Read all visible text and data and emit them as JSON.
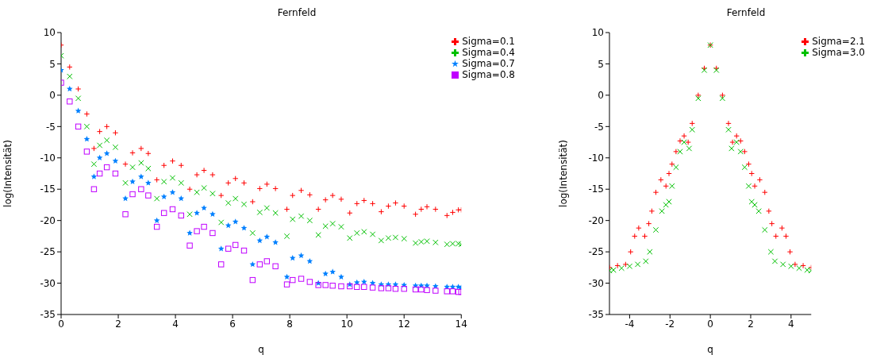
{
  "chart_data": [
    {
      "type": "scatter",
      "title": "Fernfeld",
      "xlabel": "q",
      "ylabel": "log(Intensität)",
      "xlim": [
        0,
        14
      ],
      "xticks": [
        0,
        2,
        4,
        6,
        8,
        10,
        12,
        14
      ],
      "ylim": [
        -35,
        10
      ],
      "yticks": [
        -35,
        -30,
        -25,
        -20,
        -15,
        -10,
        -5,
        0,
        5,
        10
      ],
      "grid": false,
      "legend": "top right",
      "x": [
        0,
        0.3,
        0.6,
        0.9,
        1.15,
        1.35,
        1.6,
        1.9,
        2.25,
        2.5,
        2.8,
        3.05,
        3.35,
        3.6,
        3.9,
        4.2,
        4.5,
        4.75,
        5.0,
        5.3,
        5.6,
        5.85,
        6.1,
        6.4,
        6.7,
        6.95,
        7.2,
        7.5,
        7.9,
        8.1,
        8.4,
        8.7,
        9.0,
        9.25,
        9.5,
        9.8,
        10.1,
        10.35,
        10.6,
        10.9,
        11.2,
        11.45,
        11.7,
        12.0,
        12.4,
        12.6,
        12.8,
        13.1,
        13.5,
        13.7,
        13.9,
        14.0
      ],
      "series": [
        {
          "name": "Sigma=0.1",
          "color": "#ff0000",
          "marker": "plus",
          "values": [
            8,
            4.5,
            1,
            -3,
            -8.5,
            -5.8,
            -5,
            -6,
            -11,
            -9.2,
            -8.5,
            -9.3,
            -13.5,
            -11.2,
            -10.5,
            -11.2,
            -15,
            -12.7,
            -12,
            -12.7,
            -16,
            -14,
            -13.3,
            -14,
            -17,
            -14.9,
            -14.2,
            -14.9,
            -18.2,
            -16,
            -15.2,
            -15.9,
            -18.2,
            -16.7,
            -16,
            -16.6,
            -18.8,
            -17.3,
            -16.8,
            -17.3,
            -18.6,
            -17.7,
            -17.2,
            -17.7,
            -19,
            -18.2,
            -17.8,
            -18.2,
            -19.2,
            -18.7,
            -18.3,
            -18.3
          ]
        },
        {
          "name": "Sigma=0.4",
          "color": "#00c000",
          "marker": "cross",
          "values": [
            6.3,
            3,
            -0.5,
            -5,
            -11,
            -8,
            -7.2,
            -8.3,
            -14,
            -11.5,
            -10.8,
            -11.7,
            -16.5,
            -13.8,
            -13.2,
            -14,
            -19,
            -15.5,
            -14.8,
            -15.7,
            -20.3,
            -17.2,
            -16.5,
            -17.4,
            -22,
            -18.7,
            -18,
            -18.8,
            -22.5,
            -19.8,
            -19.3,
            -20,
            -22.3,
            -20.9,
            -20.5,
            -21,
            -22.8,
            -22,
            -21.8,
            -22.2,
            -23.2,
            -22.8,
            -22.7,
            -22.9,
            -23.6,
            -23.4,
            -23.3,
            -23.5,
            -23.8,
            -23.7,
            -23.7,
            -23.8
          ]
        },
        {
          "name": "Sigma=0.7",
          "color": "#0080ff",
          "marker": "star",
          "values": [
            4,
            1,
            -2.5,
            -7,
            -13,
            -10,
            -9.3,
            -10.5,
            -16.5,
            -13.8,
            -13,
            -14,
            -20,
            -16.2,
            -15.5,
            -16.5,
            -22,
            -18.8,
            -18,
            -19,
            -24.5,
            -20.8,
            -20.2,
            -21.2,
            -27,
            -23.2,
            -22.6,
            -23.5,
            -29,
            -26,
            -25.6,
            -26.5,
            -30,
            -28.5,
            -28.2,
            -29,
            -30.2,
            -29.9,
            -29.8,
            -30,
            -30.2,
            -30.2,
            -30.2,
            -30.3,
            -30.4,
            -30.4,
            -30.4,
            -30.5,
            -30.6,
            -30.6,
            -30.6,
            -30.7
          ]
        },
        {
          "name": "Sigma=0.8",
          "color": "#c000ff",
          "marker": "square",
          "values": [
            2,
            -1,
            -5,
            -9,
            -15,
            -12.5,
            -11.5,
            -12.5,
            -19,
            -15.8,
            -15,
            -16,
            -21,
            -18.8,
            -18.2,
            -19.2,
            -24,
            -21.7,
            -21,
            -22,
            -27,
            -24.5,
            -23.9,
            -24.8,
            -29.5,
            -27,
            -26.5,
            -27.3,
            -30.2,
            -29.5,
            -29.3,
            -29.8,
            -30.3,
            -30.3,
            -30.4,
            -30.5,
            -30.5,
            -30.6,
            -30.6,
            -30.7,
            -30.8,
            -30.8,
            -30.9,
            -30.9,
            -31,
            -31,
            -31.1,
            -31.2,
            -31.3,
            -31.3,
            -31.4,
            -31.4
          ]
        }
      ]
    },
    {
      "type": "scatter",
      "title": "Fernfeld",
      "xlabel": "q",
      "ylabel": "log(Intensität)",
      "xlim": [
        -5,
        5
      ],
      "xticks": [
        -4,
        -2,
        0,
        2,
        4
      ],
      "ylim": [
        -35,
        10
      ],
      "yticks": [
        -35,
        -30,
        -25,
        -20,
        -15,
        -10,
        -5,
        0,
        5,
        10
      ],
      "grid": false,
      "legend": "top right",
      "series": [
        {
          "name": "Sigma=2.1",
          "color": "#ff0000",
          "marker": "plus",
          "x": [
            -5,
            -4.6,
            -4.2,
            -3.95,
            -3.75,
            -3.55,
            -3.25,
            -3.05,
            -2.9,
            -2.7,
            -2.45,
            -2.2,
            -2.05,
            -1.9,
            -1.7,
            -1.5,
            -1.3,
            -1.1,
            -0.9,
            -0.6,
            -0.3,
            0,
            0.3,
            0.6,
            0.9,
            1.1,
            1.3,
            1.5,
            1.7,
            1.9,
            2.05,
            2.2,
            2.45,
            2.7,
            2.9,
            3.05,
            3.25,
            3.55,
            3.75,
            3.95,
            4.2,
            4.6,
            5
          ],
          "values": [
            -27.5,
            -27.2,
            -27,
            -25,
            -22.5,
            -21.2,
            -22.5,
            -20.5,
            -18.5,
            -15.5,
            -13.5,
            -14.5,
            -12.5,
            -11,
            -9,
            -7.3,
            -6.5,
            -7.5,
            -4.5,
            0,
            4.3,
            8,
            4.3,
            0,
            -4.5,
            -7.5,
            -6.5,
            -7.3,
            -9,
            -11,
            -12.5,
            -14.5,
            -13.5,
            -15.5,
            -18.5,
            -20.5,
            -22.5,
            -21.2,
            -22.5,
            -25,
            -27,
            -27.2,
            -27.5
          ]
        },
        {
          "name": "Sigma=3.0",
          "color": "#00c000",
          "marker": "cross",
          "x": [
            -5,
            -4.8,
            -4.4,
            -4.0,
            -3.6,
            -3.2,
            -3.0,
            -2.7,
            -2.4,
            -2.2,
            -2.05,
            -1.9,
            -1.7,
            -1.5,
            -1.3,
            -1.05,
            -0.9,
            -0.6,
            -0.3,
            0,
            0.3,
            0.6,
            0.9,
            1.05,
            1.3,
            1.5,
            1.7,
            1.9,
            2.05,
            2.2,
            2.4,
            2.7,
            3.0,
            3.2,
            3.6,
            4.0,
            4.4,
            4.8,
            5
          ],
          "values": [
            -28,
            -27.9,
            -27.6,
            -27.3,
            -27,
            -26.5,
            -25,
            -21.5,
            -18.5,
            -17.5,
            -17,
            -14.5,
            -11.5,
            -9,
            -7.5,
            -8.5,
            -5.5,
            -0.5,
            4,
            8,
            4,
            -0.5,
            -5.5,
            -8.5,
            -7.5,
            -9,
            -11.5,
            -14.5,
            -17,
            -17.5,
            -18.5,
            -21.5,
            -25,
            -26.5,
            -27,
            -27.3,
            -27.6,
            -27.9,
            -28
          ]
        }
      ]
    }
  ]
}
